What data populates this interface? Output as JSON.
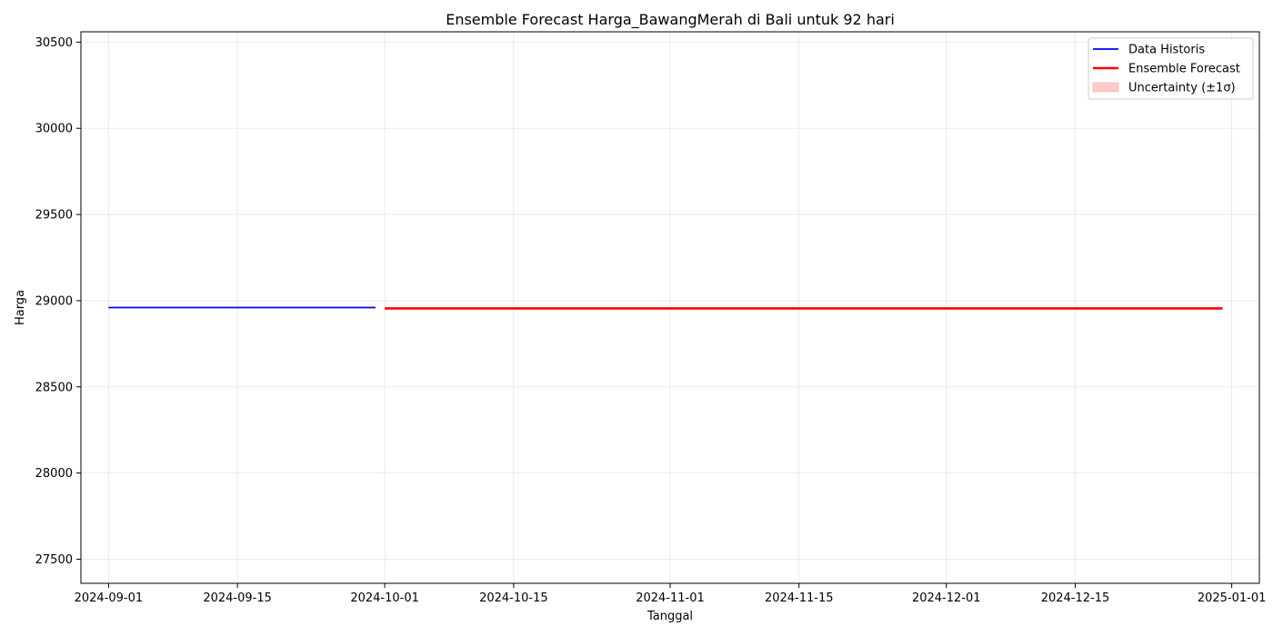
{
  "chart_data": {
    "type": "line",
    "title": "Ensemble Forecast Harga_BawangMerah di Bali untuk 92 hari",
    "xlabel": "Tanggal",
    "ylabel": "Harga",
    "x_type": "date",
    "xlim": [
      "2024-08-29",
      "2025-01-04"
    ],
    "ylim": [
      27360,
      30560
    ],
    "grid": true,
    "legend_position": "top-right",
    "x_ticks": [
      "2024-09-01",
      "2024-09-15",
      "2024-10-01",
      "2024-10-15",
      "2024-11-01",
      "2024-11-15",
      "2024-12-01",
      "2024-12-15",
      "2025-01-01"
    ],
    "y_ticks": [
      27500,
      28000,
      28500,
      29000,
      29500,
      30000,
      30500
    ],
    "series": [
      {
        "name": "Data Historis",
        "color": "#0000ff",
        "style": "line",
        "x": [
          "2024-09-01",
          "2024-09-30"
        ],
        "y": [
          28960,
          28960
        ]
      },
      {
        "name": "Ensemble Forecast",
        "color": "#ff0000",
        "style": "line",
        "x": [
          "2024-10-01",
          "2024-12-31"
        ],
        "y": [
          28955,
          28955
        ]
      },
      {
        "name": "Uncertainty (±1σ)",
        "color": "#ffb3b3",
        "style": "band",
        "x": [
          "2024-10-01",
          "2024-12-31"
        ],
        "lower": [
          28953,
          28953
        ],
        "upper": [
          28957,
          28957
        ]
      }
    ]
  }
}
